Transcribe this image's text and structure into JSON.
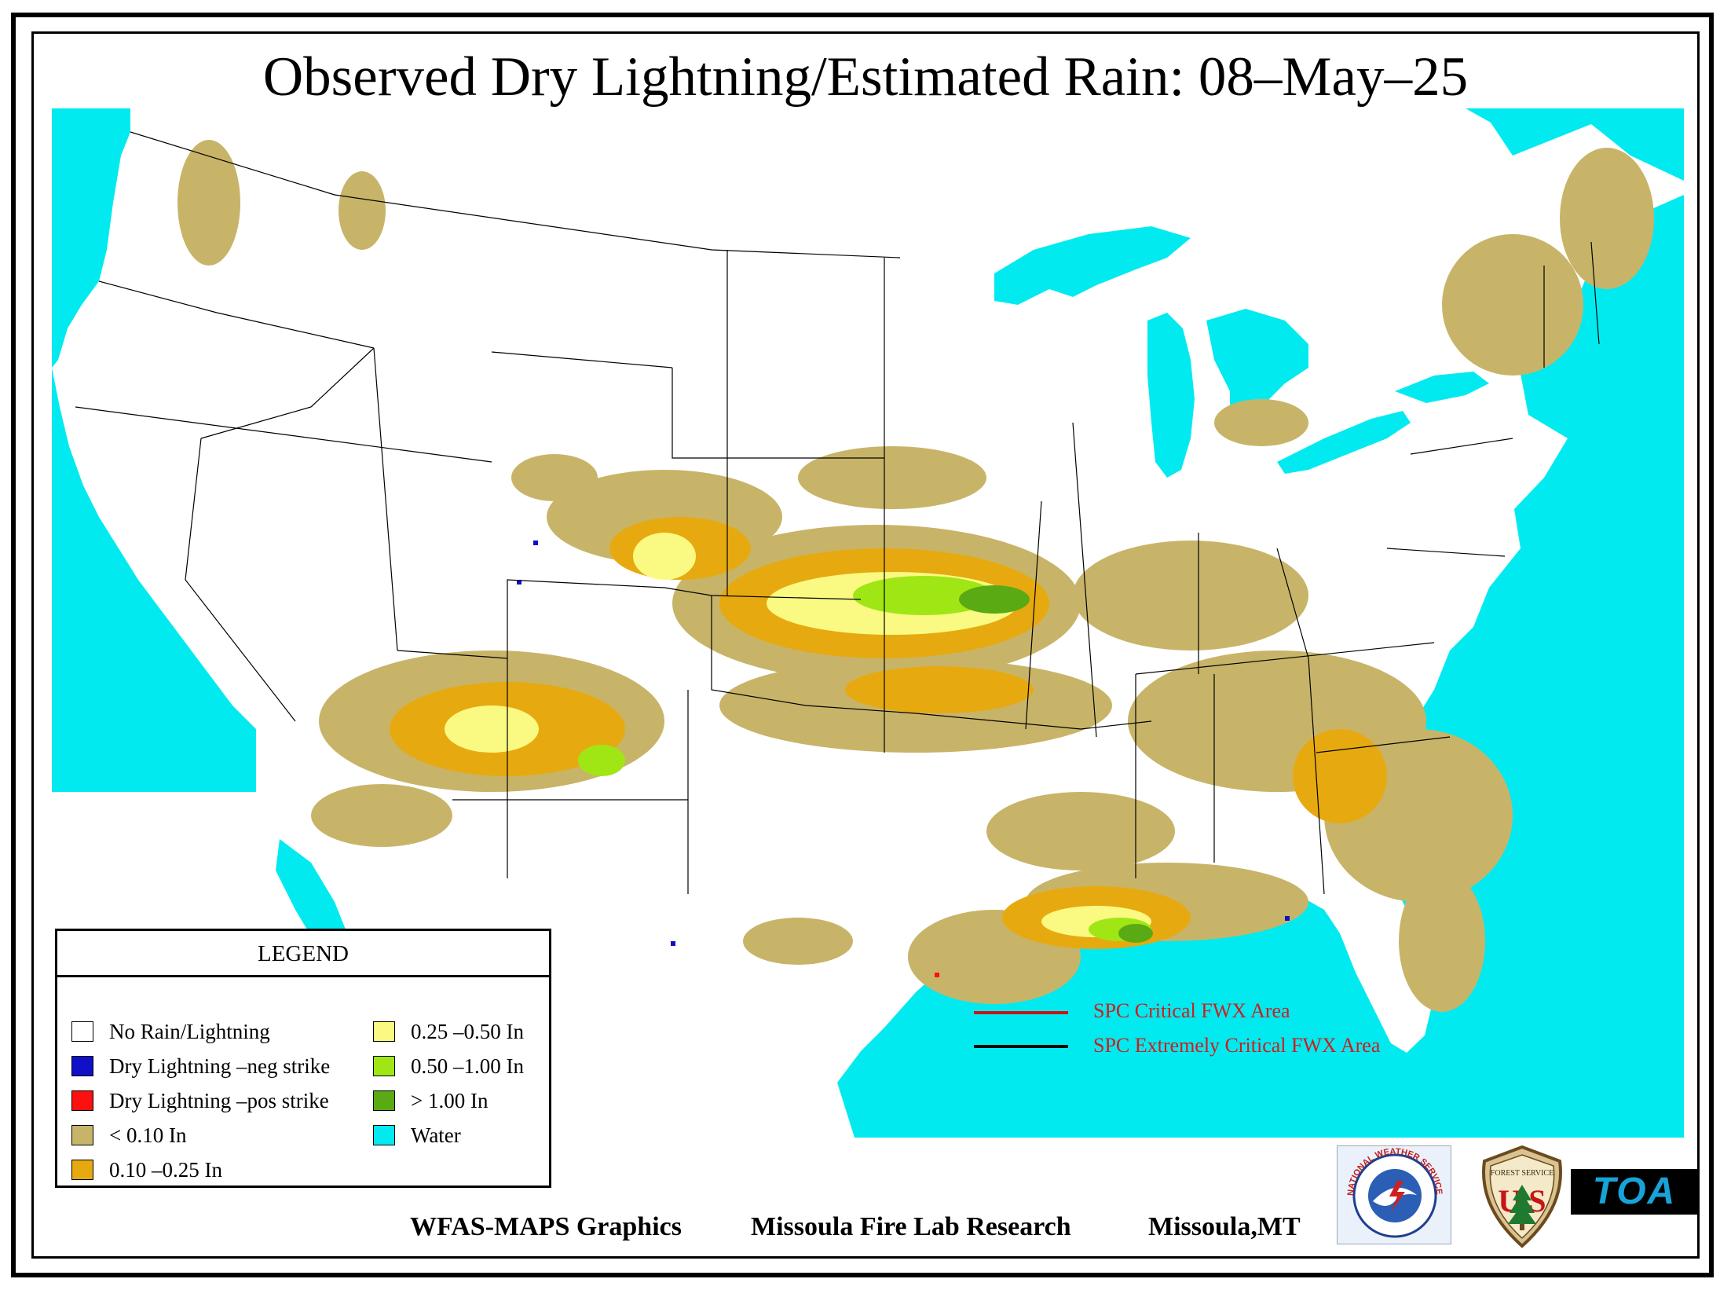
{
  "title": "Observed Dry Lightning/Estimated Rain: 08–May–25",
  "legend": {
    "title": "LEGEND",
    "items_left": [
      {
        "label": "No Rain/Lightning",
        "color": "#ffffff"
      },
      {
        "label": "Dry Lightning –neg strike",
        "color": "#1010c8"
      },
      {
        "label": "Dry Lightning –pos strike",
        "color": "#ff1010"
      },
      {
        "label": "< 0.10 In",
        "color": "#c8b468"
      },
      {
        "label": "0.10 –0.25 In",
        "color": "#e6aa10"
      }
    ],
    "items_right": [
      {
        "label": "0.25 –0.50 In",
        "color": "#fafa82"
      },
      {
        "label": "0.50 –1.00 In",
        "color": "#a0e614"
      },
      {
        "label": "> 1.00 In",
        "color": "#5aaa14"
      },
      {
        "label": "Water",
        "color": "#00eaf0"
      }
    ]
  },
  "fwx": {
    "critical_label": "SPC Critical FWX Area",
    "critical_color": "#c81414",
    "extreme_label": "SPC Extremely Critical FWX Area",
    "extreme_color": "#000000"
  },
  "footer": {
    "left": "WFAS-MAPS Graphics",
    "middle": "Missoula Fire Lab Research",
    "right": "Missoula,MT"
  },
  "logos": {
    "nws_text": "NATIONAL WEATHER SERVICE",
    "usfs_top": "FOREST SERVICE",
    "usfs_letters": "U S",
    "toa": "TOA"
  },
  "colors": {
    "water": "#00eaf0",
    "lt010": "#c8b468",
    "r010_025": "#e6aa10",
    "r025_050": "#fafa82",
    "r050_100": "#a0e614",
    "gt100": "#5aaa14"
  }
}
